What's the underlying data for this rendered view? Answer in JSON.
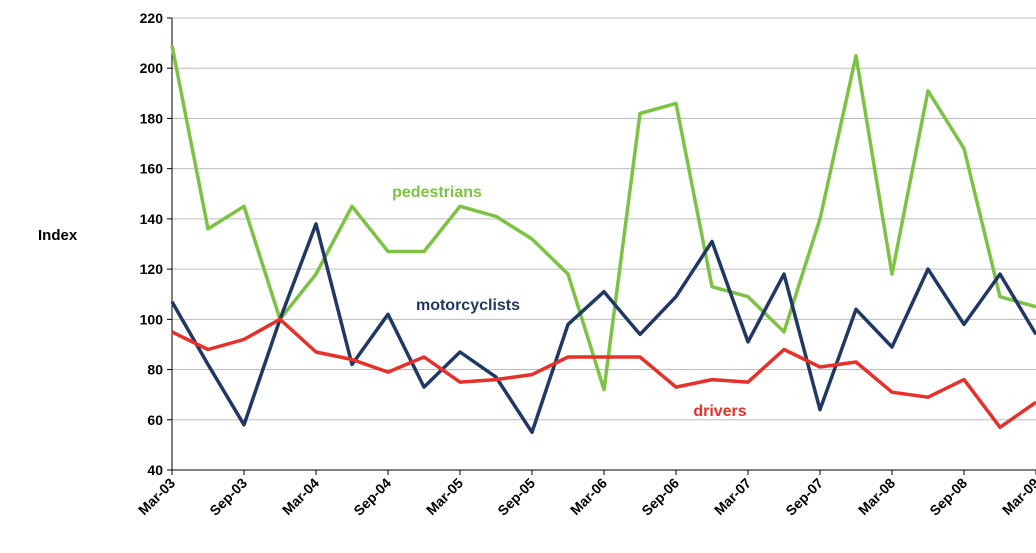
{
  "chart_data": {
    "type": "line",
    "y_label": "Index",
    "categories": [
      "Mar-03",
      null,
      "Sep-03",
      null,
      "Mar-04",
      null,
      "Sep-04",
      null,
      "Mar-05",
      null,
      "Sep-05",
      null,
      "Mar-06",
      null,
      "Sep-06",
      null,
      "Mar-07",
      null,
      "Sep-07",
      null,
      "Mar-08",
      null,
      "Sep-08",
      null,
      "Mar-09"
    ],
    "series": [
      {
        "name": "pedestrians",
        "color": "#7dc242",
        "values": [
          209,
          136,
          145,
          100,
          118,
          145,
          127,
          127,
          145,
          141,
          132,
          118,
          72,
          182,
          186,
          113,
          109,
          95,
          140,
          205,
          118,
          191,
          168,
          109,
          105
        ]
      },
      {
        "name": "motorcyclists",
        "color": "#1f3864",
        "values": [
          107,
          82,
          58,
          100,
          138,
          82,
          102,
          73,
          87,
          77,
          55,
          98,
          111,
          94,
          109,
          131,
          91,
          118,
          64,
          104,
          89,
          120,
          98,
          118,
          94
        ]
      },
      {
        "name": "drivers",
        "color": "#e8302a",
        "values": [
          95,
          88,
          92,
          100,
          87,
          84,
          79,
          85,
          75,
          76,
          78,
          85,
          85,
          85,
          73,
          76,
          75,
          88,
          81,
          83,
          71,
          69,
          76,
          57,
          67
        ]
      }
    ],
    "ylim": [
      40,
      220
    ],
    "yticks": [
      40,
      60,
      80,
      100,
      120,
      140,
      160,
      180,
      200,
      220
    ],
    "grid": true
  }
}
